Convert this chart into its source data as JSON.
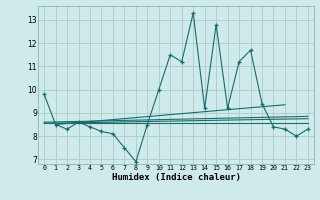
{
  "xlabel": "Humidex (Indice chaleur)",
  "bg_color": "#ceeaea",
  "grid_color": "#b0d0d0",
  "line_color": "#1a6b6b",
  "xlim": [
    -0.5,
    23.5
  ],
  "ylim": [
    6.8,
    13.6
  ],
  "yticks": [
    7,
    8,
    9,
    10,
    11,
    12,
    13
  ],
  "xticks": [
    0,
    1,
    2,
    3,
    4,
    5,
    6,
    7,
    8,
    9,
    10,
    11,
    12,
    13,
    14,
    15,
    16,
    17,
    18,
    19,
    20,
    21,
    22,
    23
  ],
  "main_x": [
    0,
    1,
    2,
    3,
    4,
    5,
    6,
    7,
    8,
    9,
    10,
    11,
    12,
    13,
    14,
    15,
    16,
    17,
    18,
    19,
    20,
    21,
    22,
    23
  ],
  "main_y": [
    9.8,
    8.5,
    8.3,
    8.6,
    8.4,
    8.2,
    8.1,
    7.5,
    6.9,
    8.5,
    10.0,
    11.5,
    11.2,
    13.3,
    9.2,
    12.8,
    9.2,
    11.2,
    11.7,
    9.4,
    8.4,
    8.3,
    8.0,
    8.3
  ],
  "trend_lines": [
    {
      "x": [
        0,
        23
      ],
      "y": [
        8.55,
        8.55
      ]
    },
    {
      "x": [
        0,
        23
      ],
      "y": [
        8.55,
        8.75
      ]
    },
    {
      "x": [
        0,
        23
      ],
      "y": [
        8.6,
        8.85
      ]
    },
    {
      "x": [
        1,
        21
      ],
      "y": [
        8.5,
        9.35
      ]
    }
  ]
}
